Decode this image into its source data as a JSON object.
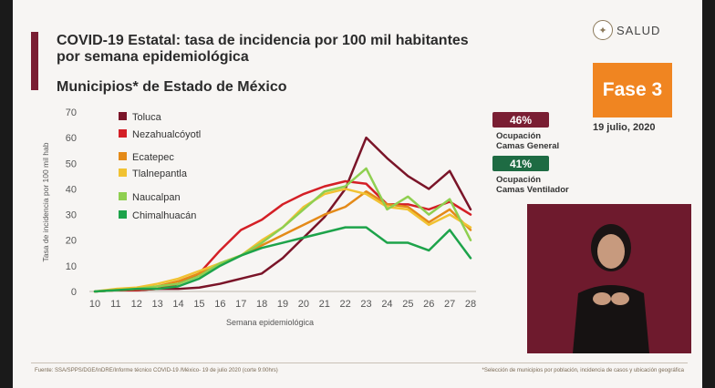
{
  "header": {
    "title_line1": "COVID-19 Estatal: tasa de incidencia por 100 mil habitantes",
    "title_line2": "por semana epidemiológica",
    "subtitle": "Municipios* de Estado de México"
  },
  "brand": {
    "name": "SALUD"
  },
  "phase": {
    "label": "Fase 3",
    "date": "19 julio, 2020"
  },
  "occupancy": [
    {
      "value": "46%",
      "label_line1": "Ocupación",
      "label_line2": "Camas General",
      "color": "#7a1e33"
    },
    {
      "value": "41%",
      "label_line1": "Ocupación",
      "label_line2": "Camas Ventilador",
      "color": "#1e6b43"
    }
  ],
  "footer": {
    "source": "Fuente: SSA/SPPS/DGE/InDRE/Informe técnico COVID-19 /México- 19 de julio 2020 (corte 9:00hrs)",
    "note": "*Selección de municipios por población, incidencia de casos y ubicación geográfica"
  },
  "chart_data": {
    "type": "line",
    "title": "",
    "xlabel": "Semana epidemiológica",
    "ylabel": "Tasa de incidencia por 100 mil hab",
    "x": [
      10,
      11,
      12,
      13,
      14,
      15,
      16,
      17,
      18,
      19,
      20,
      21,
      22,
      23,
      24,
      25,
      26,
      27,
      28
    ],
    "ylim": [
      0,
      70
    ],
    "yticks": [
      0,
      10,
      20,
      30,
      40,
      50,
      60,
      70
    ],
    "grid": false,
    "legend_position": "top-right",
    "series": [
      {
        "name": "Toluca",
        "color": "#7a1428",
        "values": [
          0,
          0.5,
          0.5,
          1,
          1,
          1.5,
          3,
          5,
          7,
          13,
          21,
          29,
          40,
          60,
          52,
          45,
          40,
          47,
          32
        ]
      },
      {
        "name": "Nezahualcóyotl",
        "color": "#d41f26",
        "values": [
          0,
          0.5,
          0.5,
          1,
          3,
          7,
          16,
          24,
          28,
          34,
          38,
          41,
          43,
          42,
          34,
          34,
          32,
          35,
          30
        ]
      },
      {
        "name": "Ecatepec",
        "color": "#e48a18",
        "values": [
          0,
          0.5,
          1,
          2,
          4,
          7,
          11,
          14,
          18,
          22,
          26,
          30,
          33,
          39,
          34,
          33,
          27,
          32,
          24
        ]
      },
      {
        "name": "Tlalnepantla",
        "color": "#f1c232",
        "values": [
          0,
          1,
          1.5,
          3,
          5,
          8,
          11,
          14,
          20,
          25,
          33,
          38,
          40,
          38,
          33,
          32,
          26,
          30,
          25
        ]
      },
      {
        "name": "Naucalpan",
        "color": "#8fcf50",
        "values": [
          0,
          0.5,
          1,
          2,
          3,
          6,
          11,
          14,
          19,
          25,
          32,
          39,
          41,
          48,
          32,
          37,
          30,
          36,
          20
        ]
      },
      {
        "name": "Chimalhuacán",
        "color": "#1da34a",
        "values": [
          0,
          0.5,
          1,
          1,
          2,
          5,
          10,
          14,
          17,
          19,
          21,
          23,
          25,
          25,
          19,
          19,
          16,
          24,
          13
        ]
      }
    ]
  }
}
